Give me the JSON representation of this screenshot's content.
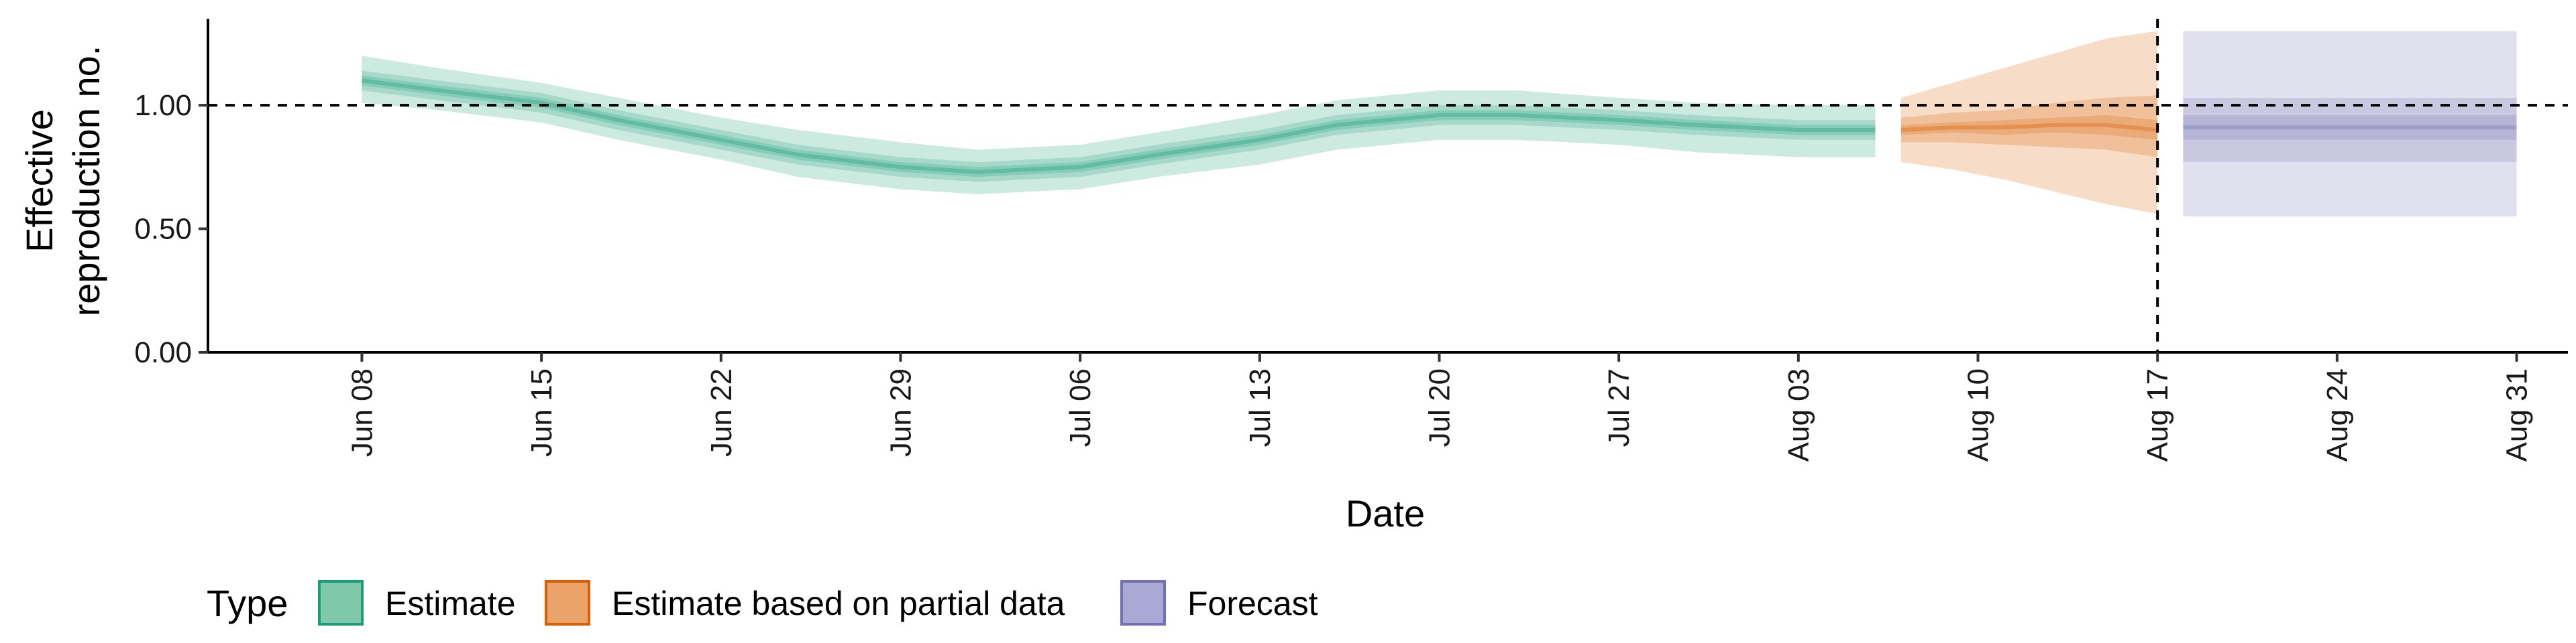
{
  "chart_data": {
    "type": "area",
    "title": "",
    "xlabel": "Date",
    "ylabel": [
      "Effective",
      "reproduction no."
    ],
    "ylim": [
      0,
      1.35
    ],
    "y_ticks": [
      0.0,
      0.5,
      1.0
    ],
    "y_tick_labels": [
      "0.00",
      "0.50",
      "1.00"
    ],
    "x_range": [
      "2020-06-02",
      "2020-09-02"
    ],
    "x_ticks": [
      "2020-06-08",
      "2020-06-15",
      "2020-06-22",
      "2020-06-29",
      "2020-07-06",
      "2020-07-13",
      "2020-07-20",
      "2020-07-27",
      "2020-08-03",
      "2020-08-10",
      "2020-08-17",
      "2020-08-24",
      "2020-08-31"
    ],
    "x_tick_labels": [
      "Jun 08",
      "Jun 15",
      "Jun 22",
      "Jun 29",
      "Jul 06",
      "Jul 13",
      "Jul 20",
      "Jul 27",
      "Aug 03",
      "Aug 10",
      "Aug 17",
      "Aug 24",
      "Aug 31"
    ],
    "hline": 1.0,
    "vline": "2020-08-17",
    "grid": false,
    "legend": {
      "title": "Type",
      "position": "bottom-left",
      "entries": [
        {
          "label": "Estimate",
          "fill": "#7fc8aa",
          "stroke": "#1b9e77"
        },
        {
          "label": "Estimate based on partial data",
          "fill": "#eaa46b",
          "stroke": "#d95f02"
        },
        {
          "label": "Forecast",
          "fill": "#aaa8d4",
          "stroke": "#7570b3"
        }
      ]
    },
    "series": [
      {
        "type_label": "Estimate",
        "color": "#1b9e77",
        "x": [
          "2020-06-08",
          "2020-06-11",
          "2020-06-15",
          "2020-06-18",
          "2020-06-22",
          "2020-06-25",
          "2020-06-29",
          "2020-07-02",
          "2020-07-06",
          "2020-07-09",
          "2020-07-13",
          "2020-07-16",
          "2020-07-20",
          "2020-07-23",
          "2020-07-27",
          "2020-07-30",
          "2020-08-03",
          "2020-08-06"
        ],
        "median": [
          1.1,
          1.06,
          1.01,
          0.94,
          0.86,
          0.8,
          0.75,
          0.73,
          0.75,
          0.8,
          0.86,
          0.92,
          0.96,
          0.96,
          0.94,
          0.92,
          0.9,
          0.9
        ],
        "ci_20": [
          [
            1.08,
            1.12
          ],
          [
            1.04,
            1.08
          ],
          [
            0.99,
            1.03
          ],
          [
            0.92,
            0.96
          ],
          [
            0.84,
            0.88
          ],
          [
            0.78,
            0.82
          ],
          [
            0.73,
            0.77
          ],
          [
            0.71,
            0.75
          ],
          [
            0.73,
            0.77
          ],
          [
            0.78,
            0.82
          ],
          [
            0.84,
            0.88
          ],
          [
            0.9,
            0.94
          ],
          [
            0.94,
            0.98
          ],
          [
            0.94,
            0.98
          ],
          [
            0.92,
            0.96
          ],
          [
            0.9,
            0.94
          ],
          [
            0.88,
            0.92
          ],
          [
            0.88,
            0.92
          ]
        ],
        "ci_50": [
          [
            1.06,
            1.14
          ],
          [
            1.02,
            1.1
          ],
          [
            0.97,
            1.05
          ],
          [
            0.9,
            0.98
          ],
          [
            0.82,
            0.9
          ],
          [
            0.76,
            0.84
          ],
          [
            0.71,
            0.79
          ],
          [
            0.69,
            0.77
          ],
          [
            0.71,
            0.79
          ],
          [
            0.76,
            0.84
          ],
          [
            0.82,
            0.9
          ],
          [
            0.88,
            0.96
          ],
          [
            0.92,
            1.0
          ],
          [
            0.92,
            1.0
          ],
          [
            0.9,
            0.98
          ],
          [
            0.88,
            0.96
          ],
          [
            0.86,
            0.94
          ],
          [
            0.86,
            0.94
          ]
        ],
        "ci_90": [
          [
            1.01,
            1.2
          ],
          [
            0.98,
            1.15
          ],
          [
            0.93,
            1.09
          ],
          [
            0.86,
            1.03
          ],
          [
            0.78,
            0.95
          ],
          [
            0.71,
            0.9
          ],
          [
            0.66,
            0.85
          ],
          [
            0.64,
            0.82
          ],
          [
            0.66,
            0.84
          ],
          [
            0.71,
            0.89
          ],
          [
            0.76,
            0.96
          ],
          [
            0.82,
            1.02
          ],
          [
            0.86,
            1.06
          ],
          [
            0.86,
            1.06
          ],
          [
            0.84,
            1.03
          ],
          [
            0.81,
            1.01
          ],
          [
            0.79,
            1.0
          ],
          [
            0.79,
            1.0
          ]
        ]
      },
      {
        "type_label": "Estimate based on partial data",
        "color": "#d95f02",
        "x": [
          "2020-08-07",
          "2020-08-09",
          "2020-08-11",
          "2020-08-13",
          "2020-08-15",
          "2020-08-17"
        ],
        "median": [
          0.9,
          0.91,
          0.91,
          0.92,
          0.92,
          0.9
        ],
        "ci_20": [
          [
            0.88,
            0.92
          ],
          [
            0.89,
            0.93
          ],
          [
            0.88,
            0.94
          ],
          [
            0.89,
            0.95
          ],
          [
            0.88,
            0.96
          ],
          [
            0.86,
            0.94
          ]
        ],
        "ci_50": [
          [
            0.85,
            0.95
          ],
          [
            0.85,
            0.97
          ],
          [
            0.84,
            0.98
          ],
          [
            0.83,
            1.01
          ],
          [
            0.82,
            1.03
          ],
          [
            0.79,
            1.04
          ]
        ],
        "ci_90": [
          [
            0.77,
            1.03
          ],
          [
            0.74,
            1.09
          ],
          [
            0.7,
            1.15
          ],
          [
            0.65,
            1.21
          ],
          [
            0.6,
            1.27
          ],
          [
            0.56,
            1.3
          ]
        ]
      },
      {
        "type_label": "Forecast",
        "color": "#7570b3",
        "x": [
          "2020-08-18",
          "2020-08-31"
        ],
        "median": [
          0.91,
          0.91
        ],
        "ci_20": [
          [
            0.86,
            0.96
          ],
          [
            0.86,
            0.96
          ]
        ],
        "ci_50": [
          [
            0.77,
            1.03
          ],
          [
            0.77,
            1.03
          ]
        ],
        "ci_90": [
          [
            0.55,
            1.3
          ],
          [
            0.55,
            1.3
          ]
        ]
      }
    ]
  }
}
